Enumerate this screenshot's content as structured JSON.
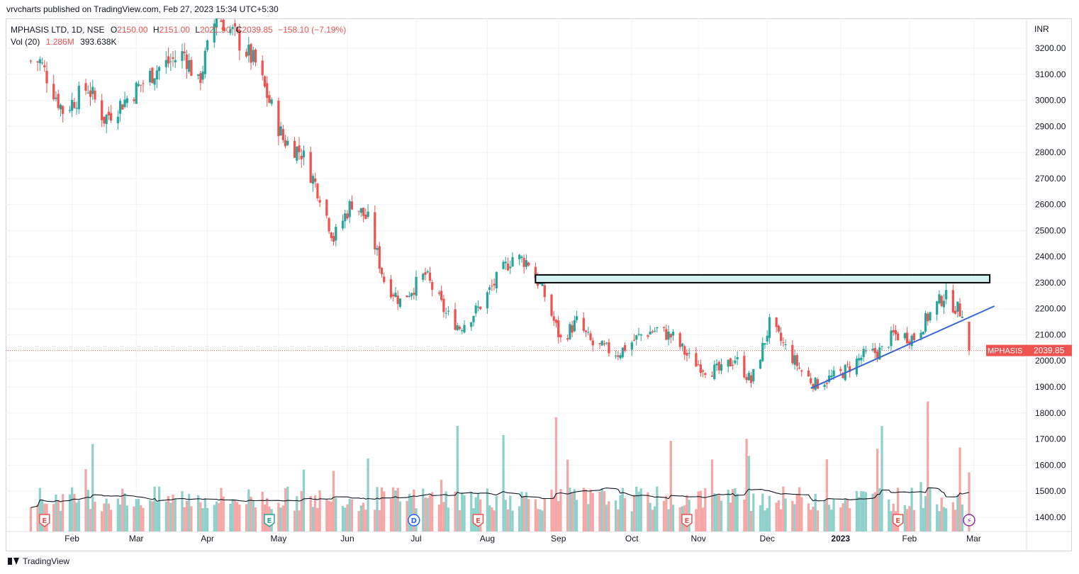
{
  "header": {
    "published": "vrvcharts published on TradingView.com, Feb 27, 2023 15:34 UTC+5:30"
  },
  "legend": {
    "symbol": "MPHASIS LTD, 1D, NSE",
    "o_label": "O",
    "o_value": "2150.00",
    "h_label": "H",
    "h_value": "2151.00",
    "l_label": "L",
    "l_value": "2021.90",
    "c_label": "C",
    "c_value": "2039.85",
    "change": "−158.10 (−7.19%)",
    "vol_label": "Vol (20)",
    "vol_value": "1.286M",
    "vol_ma": "393.638K"
  },
  "axis": {
    "currency": "INR"
  },
  "footer": {
    "brand": "TradingView"
  },
  "colors": {
    "up": "#26a69a",
    "down": "#ef5350",
    "up_vol": "#8fd1ca",
    "down_vol": "#f5a6a6",
    "trendline": "#3966d6",
    "zone_fill": "#d4f1f1",
    "price_label": "#ef5350"
  },
  "chart_data": {
    "type": "candlestick",
    "symbol": "MPHASIS",
    "last_price": 2039.85,
    "price_label": "MPHASIS",
    "price_label_value": "2039.85",
    "y_ticks": [
      "3200.00",
      "3100.00",
      "3000.00",
      "2900.00",
      "2800.00",
      "2700.00",
      "2600.00",
      "2500.00",
      "2400.00",
      "2300.00",
      "2200.00",
      "2100.00",
      "2000.00",
      "1900.00",
      "1800.00",
      "1700.00",
      "1600.00",
      "1500.00",
      "1400.00"
    ],
    "ylim": [
      1360,
      3270
    ],
    "x_ticks": [
      {
        "label": "Feb",
        "date": "2022-02-01",
        "bold": false
      },
      {
        "label": "Mar",
        "date": "2022-03-01",
        "bold": false
      },
      {
        "label": "Apr",
        "date": "2022-04-01",
        "bold": false
      },
      {
        "label": "May",
        "date": "2022-05-02",
        "bold": false
      },
      {
        "label": "Jun",
        "date": "2022-06-01",
        "bold": false
      },
      {
        "label": "Jul",
        "date": "2022-07-01",
        "bold": false
      },
      {
        "label": "Aug",
        "date": "2022-08-01",
        "bold": false
      },
      {
        "label": "Sep",
        "date": "2022-09-01",
        "bold": false
      },
      {
        "label": "Oct",
        "date": "2022-10-03",
        "bold": false
      },
      {
        "label": "Nov",
        "date": "2022-11-01",
        "bold": false
      },
      {
        "label": "Dec",
        "date": "2022-12-01",
        "bold": false
      },
      {
        "label": "2023",
        "date": "2023-01-02",
        "bold": true
      },
      {
        "label": "Feb",
        "date": "2023-02-01",
        "bold": false
      },
      {
        "label": "Mar",
        "date": "2023-03-01",
        "bold": false
      }
    ],
    "anchors": [
      {
        "date": "2022-01-18",
        "close": 3150
      },
      {
        "date": "2022-01-28",
        "close": 2960
      },
      {
        "date": "2022-02-08",
        "close": 3050
      },
      {
        "date": "2022-02-15",
        "close": 2930
      },
      {
        "date": "2022-02-24",
        "close": 3000
      },
      {
        "date": "2022-03-10",
        "close": 3120
      },
      {
        "date": "2022-03-22",
        "close": 3180
      },
      {
        "date": "2022-03-28",
        "close": 3060
      },
      {
        "date": "2022-04-05",
        "close": 3330
      },
      {
        "date": "2022-04-12",
        "close": 3260
      },
      {
        "date": "2022-04-22",
        "close": 3140
      },
      {
        "date": "2022-05-04",
        "close": 2850
      },
      {
        "date": "2022-05-12",
        "close": 2800
      },
      {
        "date": "2022-05-20",
        "close": 2640
      },
      {
        "date": "2022-05-26",
        "close": 2470
      },
      {
        "date": "2022-06-03",
        "close": 2610
      },
      {
        "date": "2022-06-10",
        "close": 2540
      },
      {
        "date": "2022-06-17",
        "close": 2310
      },
      {
        "date": "2022-06-24",
        "close": 2230
      },
      {
        "date": "2022-07-05",
        "close": 2330
      },
      {
        "date": "2022-07-14",
        "close": 2180
      },
      {
        "date": "2022-07-20",
        "close": 2130
      },
      {
        "date": "2022-07-28",
        "close": 2200
      },
      {
        "date": "2022-08-05",
        "close": 2310
      },
      {
        "date": "2022-08-12",
        "close": 2400
      },
      {
        "date": "2022-08-19",
        "close": 2380
      },
      {
        "date": "2022-08-26",
        "close": 2250
      },
      {
        "date": "2022-09-02",
        "close": 2080
      },
      {
        "date": "2022-09-09",
        "close": 2150
      },
      {
        "date": "2022-09-16",
        "close": 2060
      },
      {
        "date": "2022-09-27",
        "close": 2030
      },
      {
        "date": "2022-10-07",
        "close": 2100
      },
      {
        "date": "2022-10-14",
        "close": 2120
      },
      {
        "date": "2022-10-21",
        "close": 2090
      },
      {
        "date": "2022-10-28",
        "close": 2010
      },
      {
        "date": "2022-11-04",
        "close": 1970
      },
      {
        "date": "2022-11-11",
        "close": 1960
      },
      {
        "date": "2022-11-17",
        "close": 2010
      },
      {
        "date": "2022-11-24",
        "close": 1920
      },
      {
        "date": "2022-11-29",
        "close": 2050
      },
      {
        "date": "2022-12-02",
        "close": 2140
      },
      {
        "date": "2022-12-09",
        "close": 2050
      },
      {
        "date": "2022-12-16",
        "close": 1960
      },
      {
        "date": "2022-12-22",
        "close": 1910
      },
      {
        "date": "2023-01-02",
        "close": 1950
      },
      {
        "date": "2023-01-12",
        "close": 2020
      },
      {
        "date": "2023-01-20",
        "close": 2040
      },
      {
        "date": "2023-01-25",
        "close": 2100
      },
      {
        "date": "2023-02-03",
        "close": 2090
      },
      {
        "date": "2023-02-10",
        "close": 2180
      },
      {
        "date": "2023-02-16",
        "close": 2250
      },
      {
        "date": "2023-02-23",
        "close": 2190
      },
      {
        "date": "2023-02-24",
        "close": 2198
      },
      {
        "date": "2023-02-27",
        "close": 2039.85
      }
    ],
    "resistance_zone": {
      "from": "2022-08-22",
      "to": "2023-03-08",
      "low": 2300,
      "high": 2330
    },
    "trendline": {
      "from_date": "2022-12-20",
      "from_price": 1895,
      "to_date": "2023-03-10",
      "to_price": 2210
    },
    "volume": {
      "ylim": [
        0,
        3000000
      ],
      "ma_period": 20
    },
    "event_markers": [
      {
        "date": "2022-01-20",
        "label": "E",
        "kind": "earnings"
      },
      {
        "date": "2022-04-28",
        "label": "E",
        "kind": "earnings"
      },
      {
        "date": "2022-06-30",
        "label": "D",
        "kind": "dividend"
      },
      {
        "date": "2022-07-28",
        "label": "E",
        "kind": "earnings"
      },
      {
        "date": "2022-10-27",
        "label": "E",
        "kind": "earnings"
      },
      {
        "date": "2023-01-27",
        "label": "E",
        "kind": "earnings"
      },
      {
        "date": "2023-02-27",
        "label": "⚡",
        "kind": "split"
      }
    ]
  }
}
